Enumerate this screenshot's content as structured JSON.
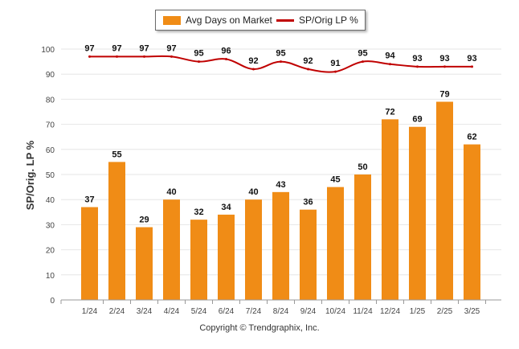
{
  "chart_data": {
    "type": "bar",
    "categories": [
      "1/24",
      "2/24",
      "3/24",
      "4/24",
      "5/24",
      "6/24",
      "7/24",
      "8/24",
      "9/24",
      "10/24",
      "11/24",
      "12/24",
      "1/25",
      "2/25",
      "3/25"
    ],
    "series": [
      {
        "name": "Avg Days on Market",
        "type": "bar",
        "color": "#f08c16",
        "values": [
          37,
          55,
          29,
          40,
          32,
          34,
          40,
          43,
          36,
          45,
          50,
          72,
          69,
          79,
          62
        ]
      },
      {
        "name": "SP/Orig LP %",
        "type": "line",
        "color": "#c00000",
        "values": [
          97,
          97,
          97,
          97,
          95,
          96,
          92,
          95,
          92,
          91,
          95,
          94,
          93,
          93,
          93
        ]
      }
    ],
    "ylabel": "SP/Orig. LP %",
    "ylim": [
      0,
      100
    ],
    "yticks": [
      0,
      10,
      20,
      30,
      40,
      50,
      60,
      70,
      80,
      90,
      100
    ],
    "grid": true,
    "legend_position": "top-center"
  },
  "footer": {
    "copyright": "Copyright © Trendgraphix, Inc."
  }
}
